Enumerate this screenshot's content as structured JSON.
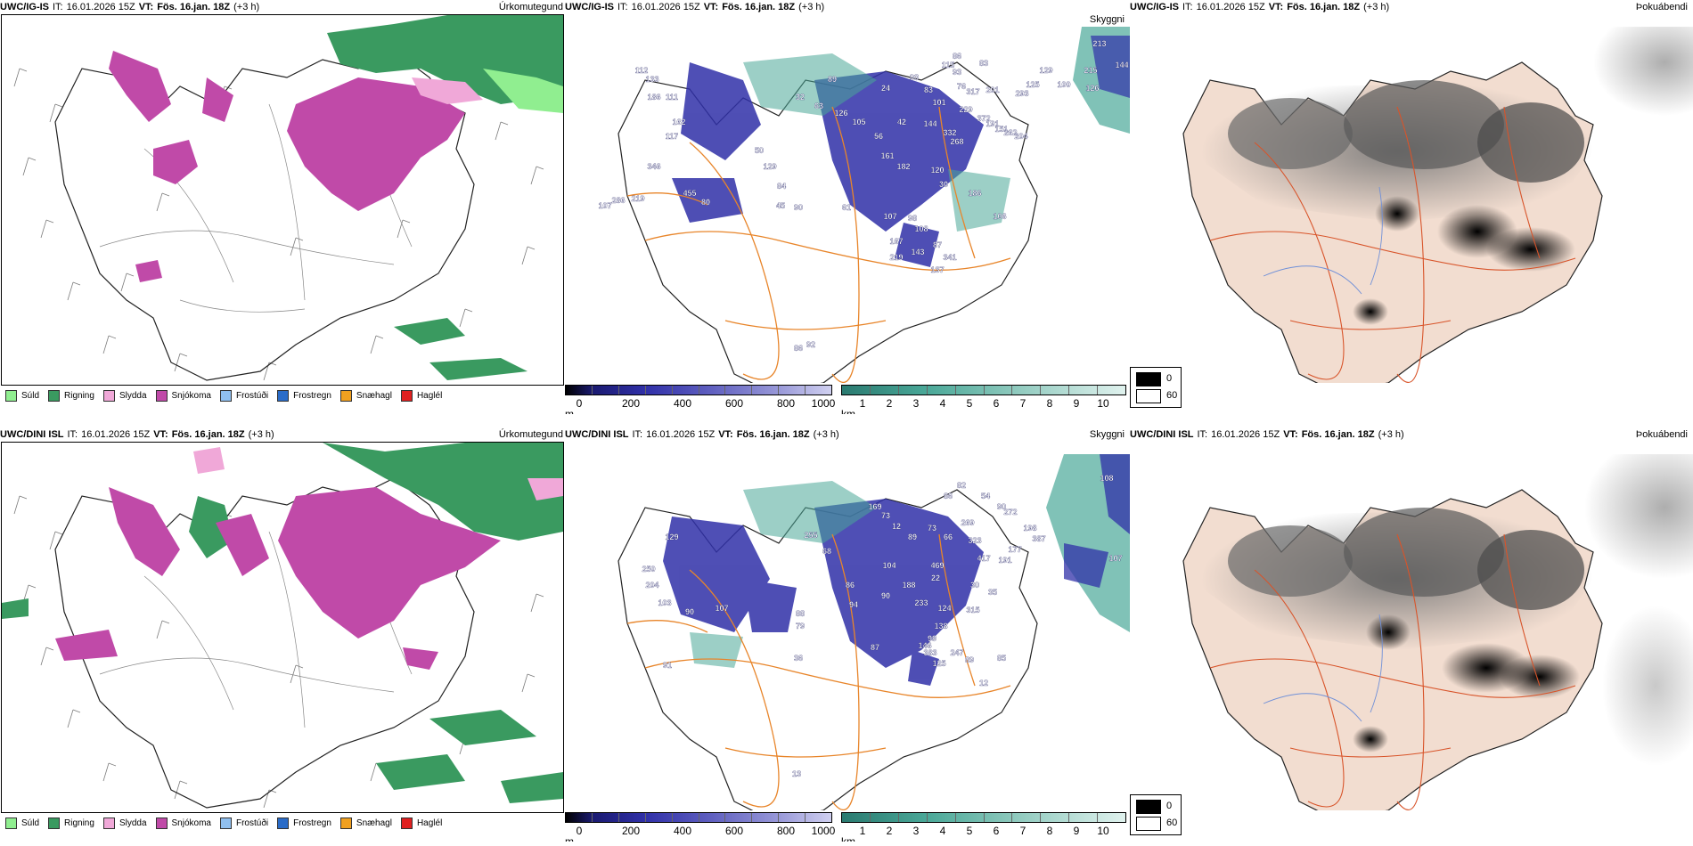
{
  "rows": [
    {
      "precip": {
        "model": "UWC/IG-IS",
        "it_label": "IT:",
        "it_value": "16.01.2026 15Z",
        "vt_label": "VT:",
        "vt_value": "Fös. 16.jan. 18Z",
        "lead": "(+3 h)",
        "corner": "Úrkomutegund"
      },
      "vis": {
        "model": "UWC/IG-IS",
        "it_label": "IT:",
        "it_value": "16.01.2026 15Z",
        "vt_label": "VT:",
        "vt_value": "Fös. 16.jan. 18Z",
        "lead": "(+3 h)",
        "corner": "Skyggni",
        "labels": [
          "213",
          "144",
          "215",
          "100",
          "126",
          "86",
          "83",
          "93",
          "129",
          "125",
          "115",
          "76",
          "317",
          "201",
          "293",
          "133",
          "112",
          "186",
          "111",
          "89",
          "93",
          "83",
          "101",
          "229",
          "372",
          "24",
          "32",
          "63",
          "126",
          "105",
          "42",
          "144",
          "332",
          "191",
          "262",
          "162",
          "117",
          "50",
          "129",
          "56",
          "161",
          "182",
          "268",
          "151",
          "204",
          "346",
          "84",
          "120",
          "30",
          "186",
          "107",
          "286",
          "219",
          "455",
          "80",
          "45",
          "90",
          "61",
          "107",
          "98",
          "108",
          "106",
          "87",
          "341",
          "137",
          "92",
          "167",
          "219",
          "143",
          "86"
        ]
      },
      "fog": {
        "model": "UWC/IG-IS",
        "it_label": "IT:",
        "it_value": "16.01.2026 15Z",
        "vt_label": "VT:",
        "vt_value": "Fös. 16.jan. 18Z",
        "lead": "(+3 h)",
        "corner": "Þokuábendi"
      }
    },
    {
      "precip": {
        "model": "UWC/DINI ISL",
        "it_label": "IT:",
        "it_value": "16.01.2026 15Z",
        "vt_label": "VT:",
        "vt_value": "Fös. 16.jan. 18Z",
        "lead": "(+3 h)",
        "corner": "Úrkomutegund"
      },
      "vis": {
        "model": "UWC/DINI ISL",
        "it_label": "IT:",
        "it_value": "16.01.2026 15Z",
        "vt_label": "VT:",
        "vt_value": "Fös. 16.jan. 18Z",
        "lead": "(+3 h)",
        "corner": "Skyggni",
        "labels": [
          "108",
          "107",
          "82",
          "54",
          "90",
          "86",
          "269",
          "272",
          "198",
          "387",
          "177",
          "169",
          "73",
          "12",
          "89",
          "73",
          "66",
          "323",
          "417",
          "191",
          "129",
          "255",
          "68",
          "104",
          "469",
          "22",
          "30",
          "250",
          "204",
          "86",
          "90",
          "188",
          "233",
          "124",
          "315",
          "138",
          "35",
          "103",
          "90",
          "107",
          "88",
          "79",
          "94",
          "383",
          "146",
          "125",
          "247",
          "89",
          "99",
          "85",
          "36",
          "87",
          "12",
          "13",
          "91"
        ]
      },
      "fog": {
        "model": "UWC/DINI ISL",
        "it_label": "IT:",
        "it_value": "16.01.2026 15Z",
        "vt_label": "VT:",
        "vt_value": "Fös. 16.jan. 18Z",
        "lead": "(+3 h)",
        "corner": "Þokuábendi"
      }
    }
  ],
  "precip_legend": [
    {
      "label": "Súld",
      "color": "#90ee90"
    },
    {
      "label": "Rigning",
      "color": "#3a9a60"
    },
    {
      "label": "Slydda",
      "color": "#f0a8d8"
    },
    {
      "label": "Snjókoma",
      "color": "#c04aa8"
    },
    {
      "label": "Frostúði",
      "color": "#90c0f0"
    },
    {
      "label": "Frostregn",
      "color": "#2a6cc8"
    },
    {
      "label": "Snæhagl",
      "color": "#f0a020"
    },
    {
      "label": "Haglél",
      "color": "#e02020"
    }
  ],
  "elevation_scale": {
    "unit": "m",
    "ticks": [
      "0",
      "200",
      "400",
      "600",
      "800",
      "1000"
    ]
  },
  "visibility_scale": {
    "unit": "km",
    "ticks": [
      "1",
      "2",
      "3",
      "4",
      "5",
      "6",
      "7",
      "8",
      "9",
      "10"
    ]
  },
  "fog_key": {
    "high": "0",
    "low": "60"
  },
  "colors": {
    "snow": "#c04aa8",
    "rain": "#3a9a60",
    "drizzle": "#90ee90",
    "sleet": "#f0a8d8",
    "vis_blue": "#3030a8",
    "vis_teal": "#4aa898",
    "road": "#e8852a"
  }
}
